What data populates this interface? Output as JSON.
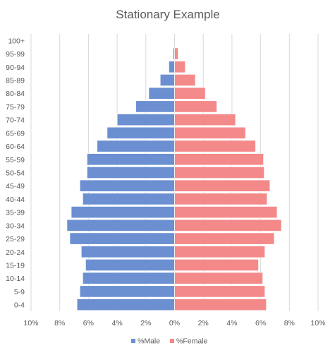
{
  "chart_data": {
    "type": "bar",
    "orientation": "horizontal",
    "layout": "population-pyramid",
    "title": "Stationary Example",
    "categories": [
      "100+",
      "95-99",
      "90-94",
      "85-89",
      "80-84",
      "75-79",
      "70-74",
      "65-69",
      "60-64",
      "55-59",
      "50-54",
      "45-49",
      "40-44",
      "35-39",
      "30-34",
      "25-29",
      "20-24",
      "15-19",
      "10-14",
      "5-9",
      "0-4"
    ],
    "series": [
      {
        "name": "%Male",
        "color": "#6b8fd1",
        "values": [
          0.0,
          0.1,
          0.4,
          1.0,
          1.8,
          2.7,
          4.0,
          4.7,
          5.4,
          6.1,
          6.1,
          6.6,
          6.4,
          7.2,
          7.5,
          7.3,
          6.5,
          6.2,
          6.4,
          6.6,
          6.8
        ]
      },
      {
        "name": "%Female",
        "color": "#f4898a",
        "values": [
          0.0,
          0.25,
          0.75,
          1.45,
          2.15,
          2.95,
          4.25,
          4.95,
          5.65,
          6.2,
          6.25,
          6.65,
          6.45,
          7.15,
          7.45,
          6.95,
          6.3,
          5.85,
          6.15,
          6.3,
          6.4
        ]
      }
    ],
    "xlim": [
      -10,
      10
    ],
    "x_ticks": [
      "10%",
      "8%",
      "6%",
      "4%",
      "2%",
      "0%",
      "2%",
      "4%",
      "6%",
      "8%",
      "10%"
    ],
    "grid": "vertical",
    "legend_position": "bottom"
  }
}
